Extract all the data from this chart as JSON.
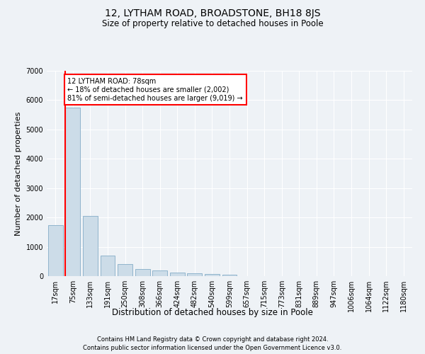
{
  "title": "12, LYTHAM ROAD, BROADSTONE, BH18 8JS",
  "subtitle": "Size of property relative to detached houses in Poole",
  "xlabel": "Distribution of detached houses by size in Poole",
  "ylabel": "Number of detached properties",
  "categories": [
    "17sqm",
    "75sqm",
    "133sqm",
    "191sqm",
    "250sqm",
    "308sqm",
    "366sqm",
    "424sqm",
    "482sqm",
    "540sqm",
    "599sqm",
    "657sqm",
    "715sqm",
    "773sqm",
    "831sqm",
    "889sqm",
    "947sqm",
    "1006sqm",
    "1064sqm",
    "1122sqm",
    "1180sqm"
  ],
  "values": [
    1750,
    5750,
    2050,
    700,
    420,
    250,
    200,
    130,
    90,
    70,
    50,
    0,
    0,
    0,
    0,
    0,
    0,
    0,
    0,
    0,
    0
  ],
  "bar_color": "#ccdce8",
  "bar_edge_color": "#90b4cc",
  "annotation_text": "12 LYTHAM ROAD: 78sqm\n← 18% of detached houses are smaller (2,002)\n81% of semi-detached houses are larger (9,019) →",
  "annotation_box_color": "white",
  "annotation_box_edge": "red",
  "vline_color": "red",
  "footer1": "Contains HM Land Registry data © Crown copyright and database right 2024.",
  "footer2": "Contains public sector information licensed under the Open Government Licence v3.0.",
  "ylim": [
    0,
    7000
  ],
  "bg_color": "#eef2f6",
  "plot_bg_color": "#eef2f6",
  "grid_color": "white",
  "title_fontsize": 10,
  "subtitle_fontsize": 8.5,
  "ylabel_fontsize": 8,
  "xlabel_fontsize": 8.5,
  "tick_fontsize": 7,
  "footer_fontsize": 6
}
